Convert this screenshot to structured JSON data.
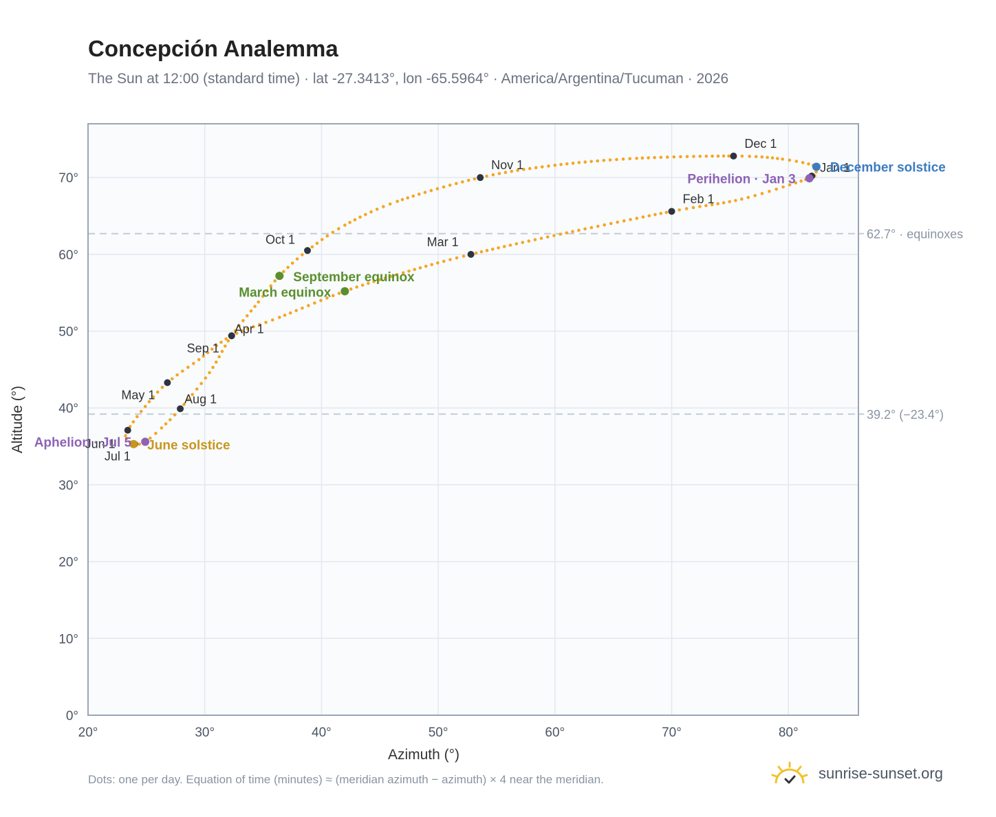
{
  "header": {
    "title": "Concepción Analemma",
    "subtitle": "The Sun at 12:00 (standard time) · lat -27.3413°, lon -65.5964° · America/Argentina/Tucuman · 2026"
  },
  "footer": {
    "note": "Dots: one per day. Equation of time (minutes) ≈ (meridian azimuth − azimuth) × 4 near the meridian.",
    "brand": "sunrise-sunset.org"
  },
  "chart_data": {
    "type": "scatter",
    "xlabel": "Azimuth (°)",
    "ylabel": "Altitude (°)",
    "xlim": [
      20,
      86
    ],
    "ylim": [
      0,
      77
    ],
    "x_ticks": [
      20,
      30,
      40,
      50,
      60,
      70,
      80
    ],
    "y_ticks": [
      0,
      10,
      20,
      30,
      40,
      50,
      60,
      70
    ],
    "x_tick_labels": [
      "20°",
      "30°",
      "40°",
      "50°",
      "60°",
      "70°",
      "80°"
    ],
    "y_tick_labels": [
      "0°",
      "10°",
      "20°",
      "30°",
      "40°",
      "50°",
      "60°",
      "70°"
    ],
    "grid": true,
    "reference_lines": [
      {
        "y": 62.7,
        "label": "62.7° · equinoxes"
      },
      {
        "y": 39.2,
        "label": "39.2° (−23.4°)"
      }
    ],
    "month_points": [
      {
        "label": "Jan 1",
        "x": 82.0,
        "y": 70.2
      },
      {
        "label": "Feb 1",
        "x": 70.0,
        "y": 65.6
      },
      {
        "label": "Mar 1",
        "x": 52.8,
        "y": 60.0
      },
      {
        "label": "Apr 1",
        "x": 32.3,
        "y": 49.4
      },
      {
        "label": "May 1",
        "x": 26.8,
        "y": 43.3
      },
      {
        "label": "Jun 1",
        "x": 23.4,
        "y": 37.1
      },
      {
        "label": "Jul 1",
        "x": 24.0,
        "y": 35.3
      },
      {
        "label": "Aug 1",
        "x": 27.9,
        "y": 39.9
      },
      {
        "label": "Sep 1",
        "x": 32.3,
        "y": 49.4
      },
      {
        "label": "Oct 1",
        "x": 38.8,
        "y": 60.5
      },
      {
        "label": "Nov 1",
        "x": 53.6,
        "y": 70.0
      },
      {
        "label": "Dec 1",
        "x": 75.3,
        "y": 72.8
      }
    ],
    "events": [
      {
        "label": "December solstice",
        "x": 82.4,
        "y": 71.4,
        "color": "#3b7bbf"
      },
      {
        "label": "Perihelion · Jan 3",
        "x": 81.8,
        "y": 69.9,
        "color": "#8e63b5"
      },
      {
        "label": "September equinox",
        "x": 36.4,
        "y": 57.2,
        "color": "#5a8f2e"
      },
      {
        "label": "March equinox",
        "x": 42.0,
        "y": 55.2,
        "color": "#5a8f2e"
      },
      {
        "label": "Aphelion · Jul 5",
        "x": 24.9,
        "y": 35.6,
        "color": "#8e63b5"
      },
      {
        "label": "June solstice",
        "x": 23.9,
        "y": 35.3,
        "color": "#c8961e"
      }
    ],
    "curve_color": "#f5a623",
    "daily_path": [
      [
        82.0,
        70.2
      ],
      [
        81.8,
        69.9
      ],
      [
        76.0,
        67.2
      ],
      [
        70.0,
        65.6
      ],
      [
        61.0,
        62.8
      ],
      [
        52.8,
        60.0
      ],
      [
        47.0,
        57.6
      ],
      [
        42.0,
        55.2
      ],
      [
        36.4,
        51.8
      ],
      [
        32.3,
        49.4
      ],
      [
        29.5,
        46.3
      ],
      [
        26.8,
        43.3
      ],
      [
        24.9,
        40.2
      ],
      [
        23.4,
        37.1
      ],
      [
        23.3,
        36.0
      ],
      [
        24.0,
        35.3
      ],
      [
        24.9,
        35.6
      ],
      [
        26.3,
        37.4
      ],
      [
        27.9,
        39.9
      ],
      [
        30.4,
        44.6
      ],
      [
        32.3,
        49.4
      ],
      [
        34.6,
        53.8
      ],
      [
        36.4,
        57.2
      ],
      [
        38.8,
        60.5
      ],
      [
        42.0,
        63.8
      ],
      [
        46.5,
        66.9
      ],
      [
        53.6,
        70.0
      ],
      [
        60.0,
        71.6
      ],
      [
        67.0,
        72.5
      ],
      [
        75.3,
        72.8
      ],
      [
        79.5,
        72.4
      ],
      [
        82.4,
        71.4
      ],
      [
        82.0,
        70.2
      ]
    ]
  }
}
